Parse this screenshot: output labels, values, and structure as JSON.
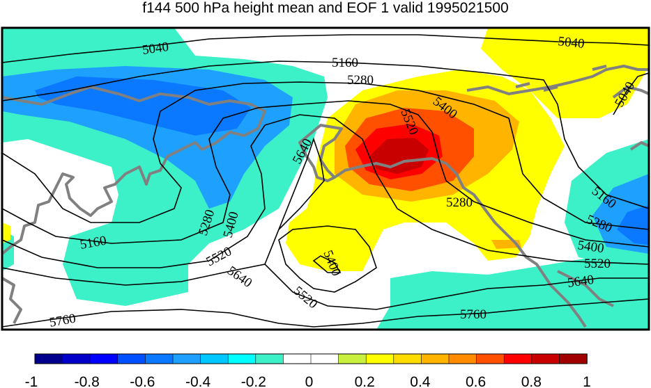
{
  "title": "f144 500 hPa height mean and EOF 1 valid 1995021500",
  "contour_labels": [
    {
      "id": "c5040a",
      "text": "5040"
    },
    {
      "id": "c5040b",
      "text": "5040"
    },
    {
      "id": "c5040c",
      "text": "5040"
    },
    {
      "id": "c5160a",
      "text": "5160"
    },
    {
      "id": "c5160b",
      "text": "5160"
    },
    {
      "id": "c5160c",
      "text": "5160"
    },
    {
      "id": "c5280a",
      "text": "5280"
    },
    {
      "id": "c5280b",
      "text": "5280"
    },
    {
      "id": "c5280c",
      "text": "5280"
    },
    {
      "id": "c5280d",
      "text": "5280"
    },
    {
      "id": "c5400a",
      "text": "5400"
    },
    {
      "id": "c5400b",
      "text": "5400"
    },
    {
      "id": "c5400c",
      "text": "5400"
    },
    {
      "id": "c5400d",
      "text": "5400"
    },
    {
      "id": "c5520a",
      "text": "5520"
    },
    {
      "id": "c5520b",
      "text": "5520"
    },
    {
      "id": "c5520c",
      "text": "5520"
    },
    {
      "id": "c5520d",
      "text": "5520"
    },
    {
      "id": "c5640a",
      "text": "5640"
    },
    {
      "id": "c5640b",
      "text": "5640"
    },
    {
      "id": "c5640c",
      "text": "5640"
    },
    {
      "id": "c5760a",
      "text": "5760"
    },
    {
      "id": "c5760b",
      "text": "5760"
    }
  ],
  "colorbar": {
    "colors": [
      "#00008c",
      "#0000c8",
      "#0000ff",
      "#0050ff",
      "#0a78ff",
      "#1ea0ff",
      "#00c8ff",
      "#00ffff",
      "#3cf0c8",
      "#ffffff",
      "#ffffff",
      "#c8f03c",
      "#ffff00",
      "#ffdc00",
      "#ffb400",
      "#ff8c00",
      "#ff5000",
      "#ff0000",
      "#c80000",
      "#a00000"
    ],
    "tick_labels": [
      "-1",
      "-0.8",
      "-0.6",
      "-0.4",
      "-0.2",
      "0",
      "0.2",
      "0.4",
      "0.6",
      "0.8",
      "1"
    ]
  },
  "colors": {
    "continent_outline": "#808080",
    "contour_line": "#000000",
    "cyan_shade": "#3cf0c8",
    "light_blue_shade": "#1ea0ff",
    "blue_shade": "#0a78ff",
    "yellow_shade": "#ffff00",
    "orange_shade": "#ffb400",
    "red_orange_shade": "#ff5000",
    "red_shade": "#ff0000",
    "dark_red_shade": "#c80000"
  }
}
